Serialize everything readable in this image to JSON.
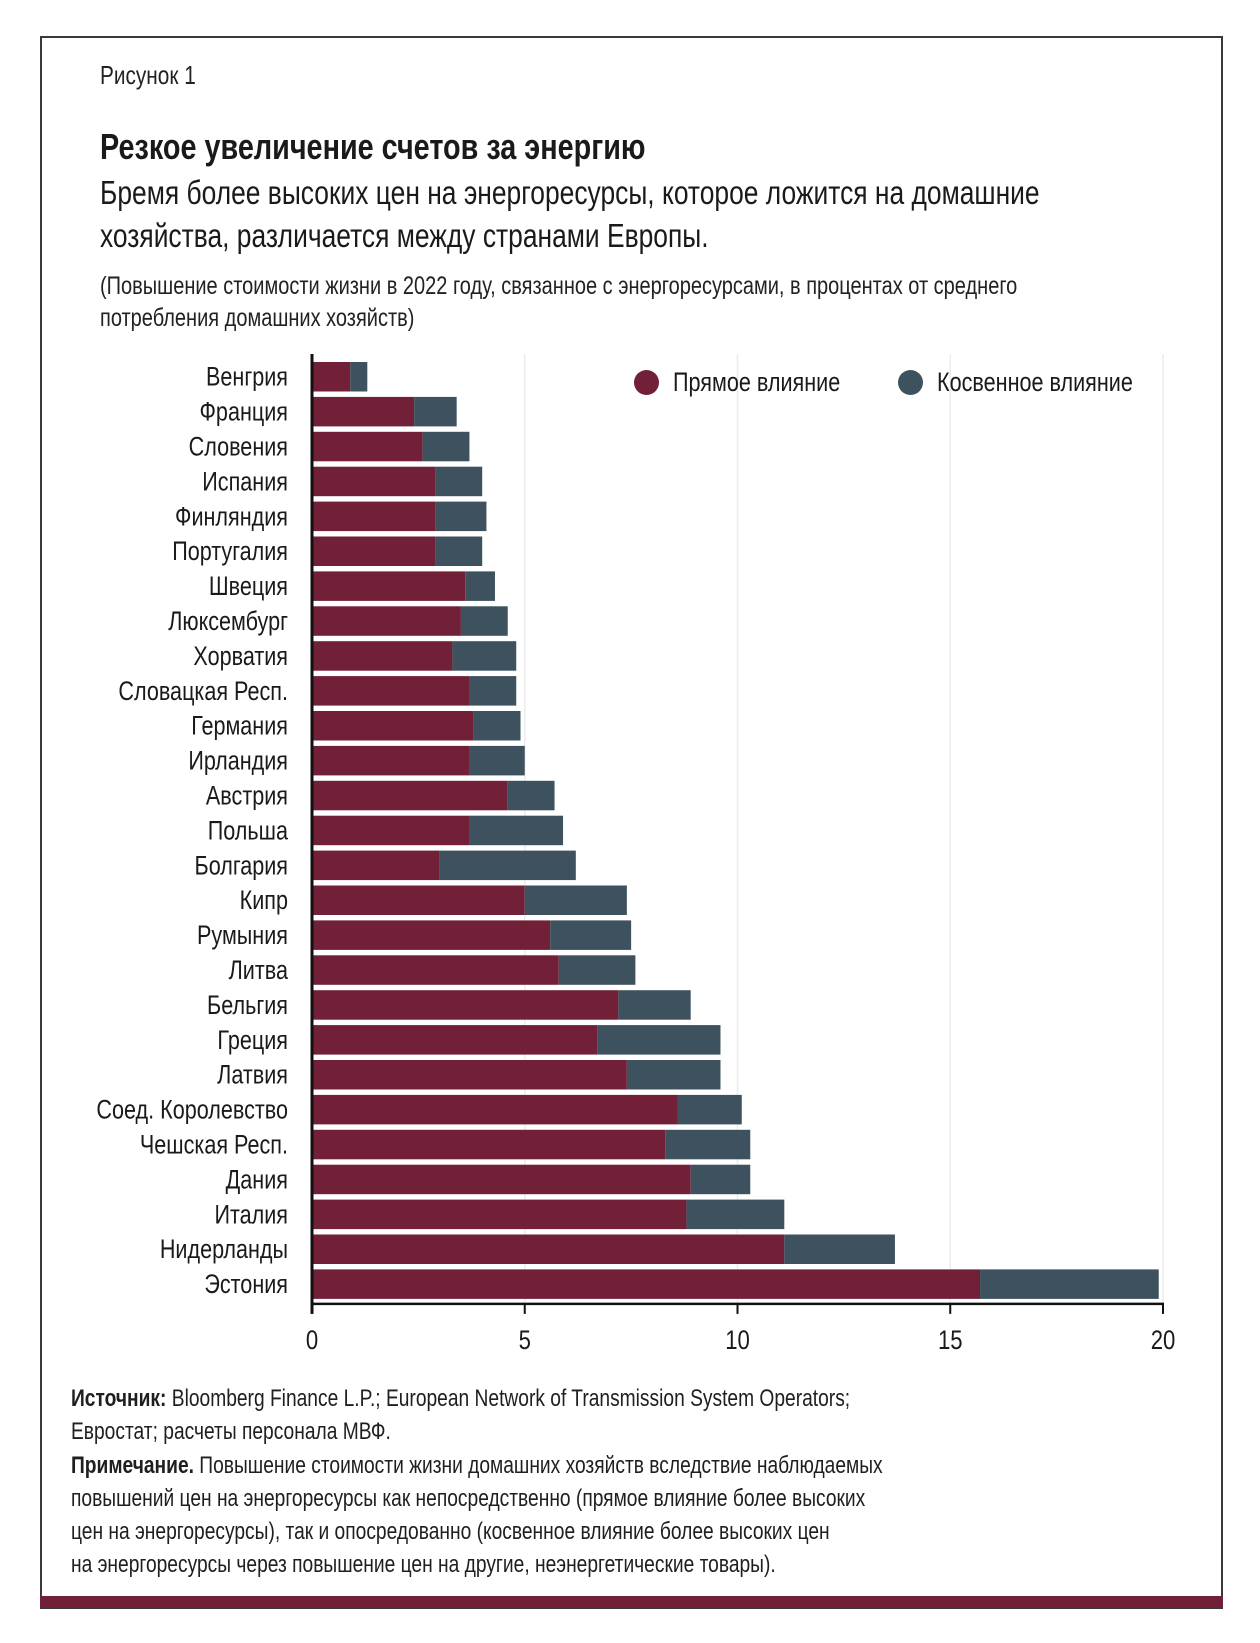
{
  "figure_label": "Рисунок 1",
  "title": "Резкое увеличение счетов за энергию",
  "subtitle_lines": [
    "Бремя более высоких цен на энергоресурсы, которое ложится на домашние",
    "хозяйства, различается между странами Европы."
  ],
  "note_lines": [
    "(Повышение стоимости жизни в 2022 году, связанное с энергоресурсами, в процентах от среднего",
    "потребления домашних хозяйств)"
  ],
  "colors": {
    "direct": "#722038",
    "indirect": "#3d525e",
    "axis": "#111111",
    "grid": "#ececec"
  },
  "chart_data": {
    "type": "bar",
    "orientation": "horizontal",
    "stacked": true,
    "title": "Резкое увеличение счетов за энергию",
    "xlabel": "",
    "ylabel": "",
    "xlim": [
      0,
      20
    ],
    "xticks": [
      0,
      5,
      10,
      15,
      20
    ],
    "grid": true,
    "legend_position": "top-right",
    "categories": [
      "Венгрия",
      "Франция",
      "Словения",
      "Испания",
      "Финляндия",
      "Португалия",
      "Швеция",
      "Люксембург",
      "Хорватия",
      "Словацкая Респ.",
      "Германия",
      "Ирландия",
      "Австрия",
      "Польша",
      "Болгария",
      "Кипр",
      "Румыния",
      "Литва",
      "Бельгия",
      "Греция",
      "Латвия",
      "Соед. Королевство",
      "Чешская Респ.",
      "Дания",
      "Италия",
      "Нидерланды",
      "Эстония"
    ],
    "series": [
      {
        "name": "Прямое влияние",
        "color": "#722038",
        "values": [
          0.9,
          2.4,
          2.6,
          2.9,
          2.9,
          2.9,
          3.6,
          3.5,
          3.3,
          3.7,
          3.8,
          3.7,
          4.6,
          3.7,
          3.0,
          5.0,
          5.6,
          5.8,
          7.2,
          6.7,
          7.4,
          8.6,
          8.3,
          8.9,
          8.8,
          11.1,
          15.7
        ]
      },
      {
        "name": "Косвенное влияние",
        "color": "#3d525e",
        "values": [
          0.4,
          1.0,
          1.1,
          1.1,
          1.2,
          1.1,
          0.7,
          1.1,
          1.5,
          1.1,
          1.1,
          1.3,
          1.1,
          2.2,
          3.2,
          2.4,
          1.9,
          1.8,
          1.7,
          2.9,
          2.2,
          1.5,
          2.0,
          1.4,
          2.3,
          2.6,
          4.2
        ]
      }
    ]
  },
  "footer": {
    "source_label": "Источник:",
    "source_lines": [
      " Bloomberg Finance L.P.; European Network of Transmission System Operators;",
      "Евростат; расчеты персонала МВФ."
    ],
    "note_label": "Примечание.",
    "note_lines": [
      " Повышение стоимости жизни домашних хозяйств вследствие наблюдаемых",
      "повышений цен на энергоресурсы как непосредственно (прямое влияние более высоких",
      "цен на энергоресурсы), так и опосредованно (косвенное влияние более высоких цен",
      "на энергоресурсы через повышение цен на другие, неэнергетические товары)."
    ]
  }
}
